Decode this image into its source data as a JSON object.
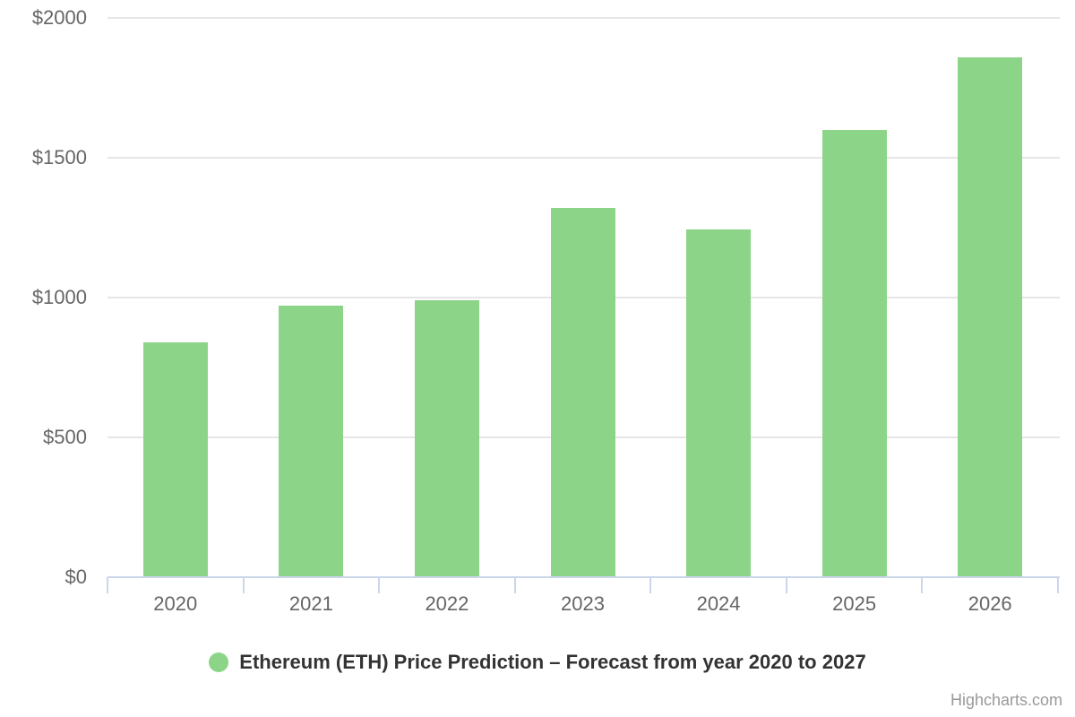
{
  "chart": {
    "legend": {
      "label": "Ethereum (ETH) Price Prediction – Forecast from year 2020 to 2027"
    },
    "credits": "Highcharts.com",
    "colors": {
      "series": "#8cd588",
      "axis_line": "#ccd6eb",
      "gridline": "#e6e6e6",
      "y_label_text": "#666666",
      "x_label_text": "#666666",
      "legend_text": "#333333",
      "credits_text": "#999999"
    }
  },
  "chart_data": {
    "type": "bar",
    "title": "",
    "xlabel": "",
    "ylabel": "",
    "categories": [
      "2020",
      "2021",
      "2022",
      "2023",
      "2024",
      "2025",
      "2026"
    ],
    "values": [
      840,
      970,
      990,
      1320,
      1245,
      1600,
      1860
    ],
    "series_name": "Ethereum (ETH) Price Prediction – Forecast from year 2020 to 2027",
    "ylim": [
      0,
      2000
    ],
    "ytick_interval": 500,
    "ytick_labels": [
      "$0",
      "$500",
      "$1000",
      "$1500",
      "$2000"
    ],
    "grid": true,
    "legend_position": "bottom-center"
  }
}
